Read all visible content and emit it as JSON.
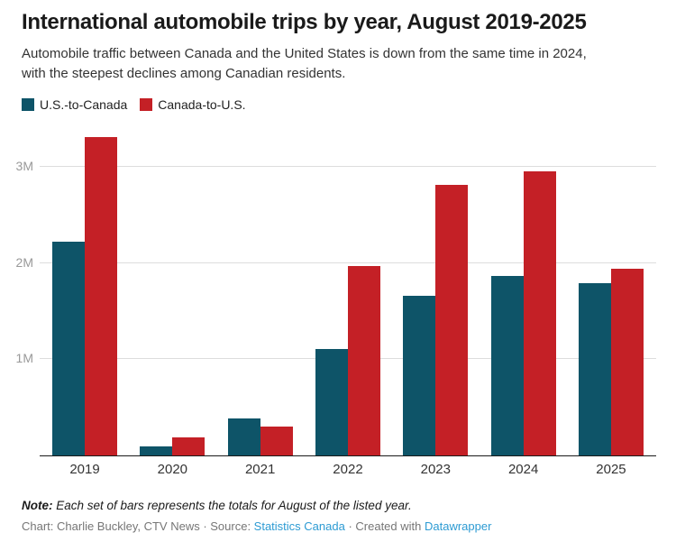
{
  "header": {
    "title": "International automobile trips by year, August 2019-2025",
    "subtitle": "Automobile traffic between Canada and the United States is down from the same time in 2024, with the steepest declines among Canadian residents."
  },
  "legend": {
    "items": [
      {
        "label": "U.S.-to-Canada",
        "color": "#0e5468"
      },
      {
        "label": "Canada-to-U.S.",
        "color": "#c42026"
      }
    ]
  },
  "chart_data": {
    "type": "bar",
    "title": "International automobile trips by year, August 2019-2025",
    "categories": [
      "2019",
      "2020",
      "2021",
      "2022",
      "2023",
      "2024",
      "2025"
    ],
    "series": [
      {
        "name": "U.S.-to-Canada",
        "color": "#0e5468",
        "values": [
          2220000,
          90000,
          380000,
          1110000,
          1660000,
          1870000,
          1790000
        ]
      },
      {
        "name": "Canada-to-U.S.",
        "color": "#c42026",
        "values": [
          3310000,
          190000,
          300000,
          1970000,
          2810000,
          2950000,
          1940000
        ]
      }
    ],
    "xlabel": "",
    "ylabel": "",
    "ylim": [
      0,
      3375000
    ],
    "yticks": [
      {
        "value": 1000000,
        "label": "1M"
      },
      {
        "value": 2000000,
        "label": "2M"
      },
      {
        "value": 3000000,
        "label": "3M"
      }
    ],
    "grid": true,
    "legend_position": "top-left",
    "colors": {
      "gridline": "#dddddd",
      "baseline": "#1a1a1a",
      "tick_label": "#999999"
    }
  },
  "footer": {
    "note_label": "Note:",
    "note_text": " Each set of bars represents the totals for August of the listed year.",
    "byline_prefix": "Chart: Charlie Buckley, CTV News · Source: ",
    "source_link_label": "Statistics Canada",
    "byline_middle": " · Created with ",
    "tool_link_label": "Datawrapper",
    "link_color": "#2d9bd3"
  }
}
